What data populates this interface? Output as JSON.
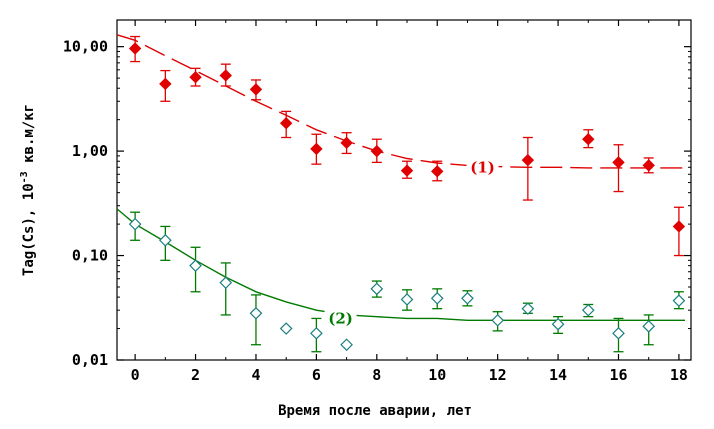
{
  "chart_data": {
    "type": "scatter",
    "xlabel": "Время после аварии, лет",
    "ylabel_main": "Tag(Cs), 10",
    "ylabel_exp": "-3",
    "ylabel_unit": " кв.м/кг",
    "xlim": [
      -0.6,
      18.4
    ],
    "ylim": [
      0.01,
      18
    ],
    "yscale": "log",
    "grid": false,
    "xticks": [
      0,
      2,
      4,
      6,
      8,
      10,
      12,
      14,
      16,
      18
    ],
    "xtick_labels": [
      "0",
      "2",
      "4",
      "6",
      "8",
      "10",
      "12",
      "14",
      "16",
      "18"
    ],
    "yticks": [
      0.01,
      0.1,
      1,
      10
    ],
    "ytick_labels": [
      "0,01",
      "0,10",
      "1,00",
      "10,00"
    ],
    "series": [
      {
        "annotation": "(1)",
        "color": "#e00000",
        "marker": "filled-diamond",
        "line_style": "dashed",
        "points": [
          {
            "x": 0,
            "y": 9.6,
            "lo": 7.2,
            "hi": 12.5
          },
          {
            "x": 1,
            "y": 4.4,
            "lo": 3.0,
            "hi": 5.9
          },
          {
            "x": 2,
            "y": 5.1,
            "lo": 4.2,
            "hi": 6.2
          },
          {
            "x": 3,
            "y": 5.3,
            "lo": 4.2,
            "hi": 6.8
          },
          {
            "x": 4,
            "y": 3.9,
            "lo": 3.1,
            "hi": 4.8
          },
          {
            "x": 5,
            "y": 1.85,
            "lo": 1.35,
            "hi": 2.4
          },
          {
            "x": 6,
            "y": 1.05,
            "lo": 0.75,
            "hi": 1.45
          },
          {
            "x": 7,
            "y": 1.2,
            "lo": 0.95,
            "hi": 1.5
          },
          {
            "x": 8,
            "y": 1.0,
            "lo": 0.78,
            "hi": 1.3
          },
          {
            "x": 9,
            "y": 0.65,
            "lo": 0.55,
            "hi": 0.8
          },
          {
            "x": 10,
            "y": 0.64,
            "lo": 0.52,
            "hi": 0.8
          },
          {
            "x": 13,
            "y": 0.82,
            "lo": 0.34,
            "hi": 1.35
          },
          {
            "x": 15,
            "y": 1.3,
            "lo": 1.08,
            "hi": 1.6
          },
          {
            "x": 16,
            "y": 0.78,
            "lo": 0.41,
            "hi": 1.15
          },
          {
            "x": 17,
            "y": 0.73,
            "lo": 0.62,
            "hi": 0.86
          },
          {
            "x": 18,
            "y": 0.19,
            "lo": 0.1,
            "hi": 0.29
          }
        ],
        "fit": {
          "x": [
            -0.6,
            0,
            1,
            2,
            3,
            4,
            5,
            6,
            7,
            8,
            9,
            10,
            11,
            12,
            13,
            14,
            15,
            16,
            17,
            18.2
          ],
          "y": [
            13.0,
            11.5,
            8.2,
            5.9,
            4.2,
            3.0,
            2.2,
            1.6,
            1.25,
            1.0,
            0.85,
            0.77,
            0.73,
            0.71,
            0.7,
            0.7,
            0.69,
            0.69,
            0.69,
            0.69
          ]
        }
      },
      {
        "annotation": "(2)",
        "color": "#007a00",
        "marker": "open-diamond",
        "line_style": "solid",
        "points": [
          {
            "x": 0,
            "y": 0.2,
            "lo": 0.14,
            "hi": 0.26
          },
          {
            "x": 1,
            "y": 0.14,
            "lo": 0.09,
            "hi": 0.19
          },
          {
            "x": 2,
            "y": 0.08,
            "lo": 0.045,
            "hi": 0.12
          },
          {
            "x": 3,
            "y": 0.055,
            "lo": 0.027,
            "hi": 0.085
          },
          {
            "x": 4,
            "y": 0.028,
            "lo": 0.014,
            "hi": 0.042
          },
          {
            "x": 5,
            "y": 0.02
          },
          {
            "x": 6,
            "y": 0.018,
            "lo": 0.012,
            "hi": 0.025
          },
          {
            "x": 7,
            "y": 0.014
          },
          {
            "x": 8,
            "y": 0.048,
            "lo": 0.04,
            "hi": 0.057
          },
          {
            "x": 9,
            "y": 0.038,
            "lo": 0.03,
            "hi": 0.047
          },
          {
            "x": 10,
            "y": 0.039,
            "lo": 0.031,
            "hi": 0.048
          },
          {
            "x": 11,
            "y": 0.039,
            "lo": 0.033,
            "hi": 0.046
          },
          {
            "x": 12,
            "y": 0.024,
            "lo": 0.019,
            "hi": 0.029
          },
          {
            "x": 13,
            "y": 0.031,
            "lo": 0.028,
            "hi": 0.035
          },
          {
            "x": 14,
            "y": 0.022,
            "lo": 0.018,
            "hi": 0.026
          },
          {
            "x": 15,
            "y": 0.03,
            "lo": 0.026,
            "hi": 0.034
          },
          {
            "x": 16,
            "y": 0.018,
            "lo": 0.012,
            "hi": 0.025
          },
          {
            "x": 17,
            "y": 0.021,
            "lo": 0.014,
            "hi": 0.027
          },
          {
            "x": 18,
            "y": 0.037,
            "lo": 0.031,
            "hi": 0.045
          }
        ],
        "fit": {
          "x": [
            -0.6,
            0,
            1,
            2,
            3,
            4,
            5,
            6,
            7,
            8,
            9,
            10,
            11,
            12,
            14,
            16,
            18.2
          ],
          "y": [
            0.28,
            0.2,
            0.135,
            0.09,
            0.062,
            0.045,
            0.036,
            0.03,
            0.027,
            0.026,
            0.025,
            0.025,
            0.024,
            0.024,
            0.024,
            0.024,
            0.024
          ]
        }
      }
    ]
  }
}
